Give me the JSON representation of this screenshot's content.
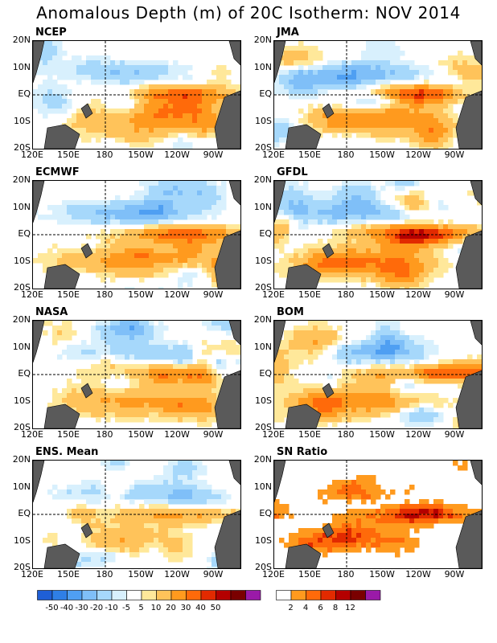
{
  "title": "Anomalous Depth (m) of 20C Isotherm: NOV 2014",
  "lat_labels": [
    "20N",
    "10N",
    "EQ",
    "10S",
    "20S"
  ],
  "lon_labels": [
    "120E",
    "150E",
    "180",
    "150W",
    "120W",
    "90W"
  ],
  "panels": [
    {
      "name": "NCEP",
      "seed": 11,
      "amp": 1.0
    },
    {
      "name": "JMA",
      "seed": 23,
      "amp": 1.2
    },
    {
      "name": "ECMWF",
      "seed": 37,
      "amp": 1.15
    },
    {
      "name": "GFDL",
      "seed": 41,
      "amp": 1.3
    },
    {
      "name": "NASA",
      "seed": 53,
      "amp": 1.05
    },
    {
      "name": "BOM",
      "seed": 67,
      "amp": 1.2
    },
    {
      "name": "ENS. Mean",
      "seed": 79,
      "amp": 0.85
    },
    {
      "name": "SN Ratio",
      "seed": 97,
      "amp": 1.0
    }
  ],
  "anomaly_colorbar": {
    "colors": [
      "#1f5fd6",
      "#2f7fe6",
      "#4f9ff2",
      "#7fbff8",
      "#a6d8fb",
      "#d8f0fd",
      "#ffffff",
      "#ffe89a",
      "#ffc35a",
      "#ff9a1e",
      "#ff6a0a",
      "#e22a00",
      "#b40000",
      "#7a0000",
      "#9a1aa8"
    ],
    "labels": [
      "-50",
      "-40",
      "-30",
      "-20",
      "-10",
      "-5",
      "5",
      "10",
      "20",
      "30",
      "40",
      "50"
    ]
  },
  "ratio_colorbar": {
    "colors": [
      "#ffffff",
      "#ff9a1e",
      "#ff6a0a",
      "#e22a00",
      "#b40000",
      "#7a0000",
      "#9a1aa8"
    ],
    "labels": [
      "2",
      "4",
      "6",
      "8",
      "12"
    ]
  },
  "land_color": "#5a5a5a"
}
